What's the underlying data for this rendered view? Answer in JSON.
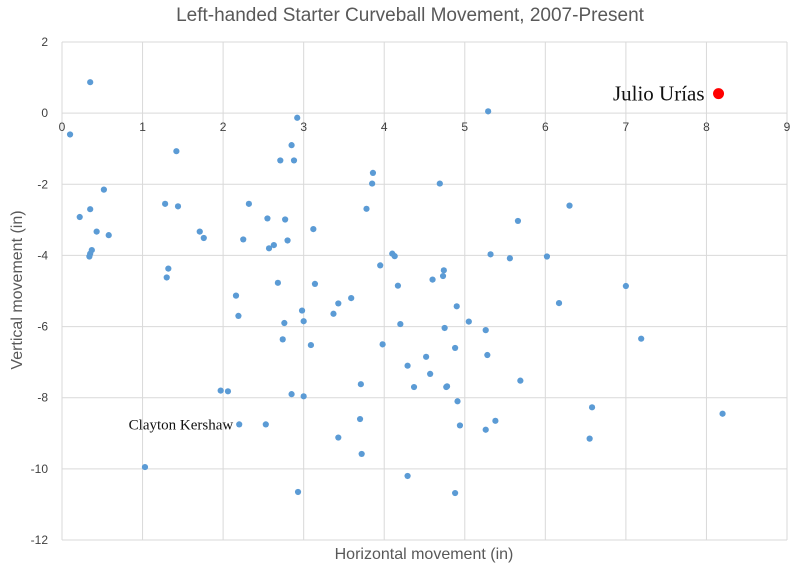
{
  "chart_data": {
    "type": "scatter",
    "title": "Left-handed Starter Curveball Movement, 2007-Present",
    "xlabel": "Horizontal movement (in)",
    "ylabel": "Vertical movement (in)",
    "xlim": [
      0,
      9
    ],
    "ylim": [
      -12,
      2
    ],
    "x_ticks": [
      0,
      1,
      2,
      3,
      4,
      5,
      6,
      7,
      8,
      9
    ],
    "y_ticks": [
      2,
      0,
      -2,
      -4,
      -6,
      -8,
      -10,
      -12
    ],
    "grid": true,
    "colors": {
      "points": "#5b9bd5",
      "highlight": "#ff0000"
    },
    "points": [
      [
        0.35,
        0.87
      ],
      [
        0.1,
        -0.6
      ],
      [
        0.22,
        -2.92
      ],
      [
        0.35,
        -2.7
      ],
      [
        0.52,
        -2.15
      ],
      [
        0.43,
        -3.33
      ],
      [
        0.58,
        -3.43
      ],
      [
        0.37,
        -3.85
      ],
      [
        0.35,
        -3.95
      ],
      [
        0.34,
        -4.03
      ],
      [
        1.03,
        -9.95
      ],
      [
        1.28,
        -2.55
      ],
      [
        1.42,
        -1.07
      ],
      [
        1.44,
        -2.62
      ],
      [
        1.32,
        -4.37
      ],
      [
        1.3,
        -4.62
      ],
      [
        1.71,
        -3.33
      ],
      [
        1.76,
        -3.51
      ],
      [
        2.32,
        -2.55
      ],
      [
        2.25,
        -3.55
      ],
      [
        2.16,
        -5.13
      ],
      [
        2.19,
        -5.7
      ],
      [
        1.97,
        -7.8
      ],
      [
        2.06,
        -7.82
      ],
      [
        2.2,
        -8.75
      ],
      [
        2.53,
        -8.75
      ],
      [
        2.55,
        -2.96
      ],
      [
        2.57,
        -3.8
      ],
      [
        2.63,
        -3.71
      ],
      [
        2.68,
        -4.77
      ],
      [
        2.71,
        -1.33
      ],
      [
        2.85,
        -0.9
      ],
      [
        2.88,
        -1.33
      ],
      [
        2.92,
        -0.13
      ],
      [
        2.77,
        -2.99
      ],
      [
        2.8,
        -3.58
      ],
      [
        2.76,
        -5.9
      ],
      [
        2.74,
        -6.36
      ],
      [
        2.85,
        -7.9
      ],
      [
        2.98,
        -5.55
      ],
      [
        3.0,
        -5.85
      ],
      [
        3.0,
        -7.96
      ],
      [
        2.93,
        -10.65
      ],
      [
        3.12,
        -3.26
      ],
      [
        3.14,
        -4.8
      ],
      [
        3.09,
        -6.52
      ],
      [
        3.37,
        -5.64
      ],
      [
        3.43,
        -5.35
      ],
      [
        3.59,
        -5.2
      ],
      [
        3.43,
        -9.12
      ],
      [
        3.86,
        -1.68
      ],
      [
        3.85,
        -1.98
      ],
      [
        3.78,
        -2.69
      ],
      [
        3.71,
        -7.62
      ],
      [
        3.7,
        -8.6
      ],
      [
        3.72,
        -9.58
      ],
      [
        3.95,
        -4.28
      ],
      [
        3.98,
        -6.5
      ],
      [
        4.1,
        -3.95
      ],
      [
        4.13,
        -4.02
      ],
      [
        4.17,
        -4.85
      ],
      [
        4.2,
        -5.93
      ],
      [
        4.29,
        -7.1
      ],
      [
        4.37,
        -7.7
      ],
      [
        4.29,
        -10.2
      ],
      [
        4.69,
        -1.98
      ],
      [
        4.74,
        -4.42
      ],
      [
        4.73,
        -4.58
      ],
      [
        4.6,
        -4.68
      ],
      [
        4.75,
        -6.04
      ],
      [
        4.52,
        -6.85
      ],
      [
        4.57,
        -7.33
      ],
      [
        4.78,
        -7.68
      ],
      [
        4.77,
        -7.7
      ],
      [
        4.9,
        -5.43
      ],
      [
        4.88,
        -6.6
      ],
      [
        4.91,
        -8.1
      ],
      [
        4.94,
        -8.78
      ],
      [
        4.88,
        -10.68
      ],
      [
        5.29,
        0.05
      ],
      [
        5.32,
        -3.97
      ],
      [
        5.56,
        -4.08
      ],
      [
        5.05,
        -5.86
      ],
      [
        5.26,
        -6.1
      ],
      [
        5.28,
        -6.8
      ],
      [
        5.26,
        -8.9
      ],
      [
        5.38,
        -8.65
      ],
      [
        5.66,
        -3.03
      ],
      [
        5.69,
        -7.52
      ],
      [
        6.3,
        -2.6
      ],
      [
        6.02,
        -4.03
      ],
      [
        6.17,
        -5.34
      ],
      [
        6.55,
        -9.15
      ],
      [
        6.58,
        -8.27
      ],
      [
        7.0,
        -4.86
      ],
      [
        7.19,
        -6.34
      ],
      [
        8.2,
        -8.45
      ]
    ],
    "highlight": {
      "x": 8.15,
      "y": 0.55,
      "label": "Julio Urías"
    },
    "annotations": [
      {
        "text": "Clayton Kershaw",
        "x": 2.2,
        "y": -8.75
      }
    ]
  }
}
